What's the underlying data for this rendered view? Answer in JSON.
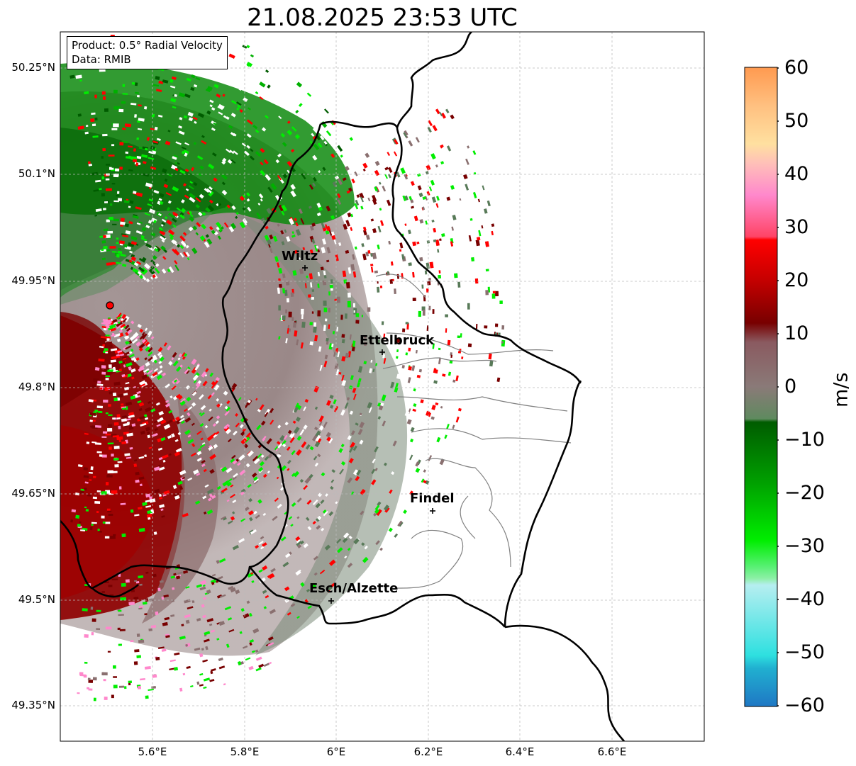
{
  "title": "21.08.2025 23:53 UTC",
  "info": {
    "product": "Product: 0.5° Radial Velocity",
    "data": "Data: RMIB"
  },
  "axes": {
    "lat_labels": [
      "50.25°N",
      "50.1°N",
      "49.95°N",
      "49.8°N",
      "49.65°N",
      "49.5°N",
      "49.35°N"
    ],
    "lon_labels": [
      "5.6°E",
      "5.8°E",
      "6°E",
      "6.2°E",
      "6.4°E",
      "6.6°E"
    ],
    "gridlines": true
  },
  "cities": [
    {
      "name": "Wiltz"
    },
    {
      "name": "Ettelbruck"
    },
    {
      "name": "Findel"
    },
    {
      "name": "Esch/Alzette"
    }
  ],
  "radar_site_color": "#ff0000",
  "colorbar": {
    "units": "m/s",
    "min": -60,
    "max": 60,
    "ticks": [
      "60",
      "50",
      "40",
      "30",
      "20",
      "10",
      "0",
      "−10",
      "−20",
      "−30",
      "−40",
      "−50",
      "−60"
    ],
    "colors": {
      "inbound_fast": "#1f77c4",
      "cyan": "#2ee0e0",
      "light_cyan": "#b6eef0",
      "light_green": "#8ef0a8",
      "bright_green": "#00ee00",
      "dark_green": "#005c00",
      "gray_green": "#587a58",
      "gray_brown": "#8a7070",
      "dark_red": "#780000",
      "red": "#ff0000",
      "pink": "#ff88cc",
      "peach": "#ffd8a8",
      "orange": "#ff9a50"
    }
  }
}
